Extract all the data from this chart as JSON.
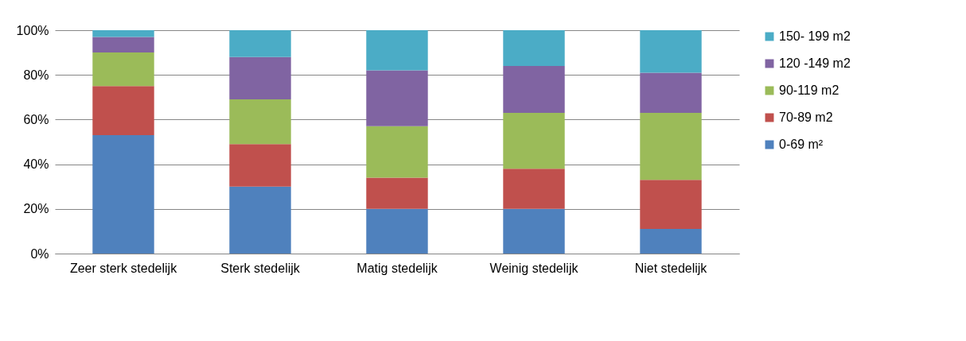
{
  "chart_data": {
    "type": "bar",
    "stacked": true,
    "categories": [
      "Zeer sterk stedelijk",
      "Sterk stedelijk",
      "Matig stedelijk",
      "Weinig stedelijk",
      "Niet stedelijk"
    ],
    "series": [
      {
        "name": "0-69 m²",
        "color": "#4f81bd",
        "values": [
          53,
          30,
          20,
          20,
          11
        ]
      },
      {
        "name": "70-89 m2",
        "color": "#c0504d",
        "values": [
          22,
          19,
          14,
          18,
          22
        ]
      },
      {
        "name": "90-119 m2",
        "color": "#9bbb59",
        "values": [
          15,
          20,
          23,
          25,
          30
        ]
      },
      {
        "name": "120 -149 m2",
        "color": "#8064a2",
        "values": [
          7,
          19,
          25,
          21,
          18
        ]
      },
      {
        "name": "150- 199 m2",
        "color": "#4bacc6",
        "values": [
          3,
          12,
          18,
          16,
          19
        ]
      }
    ],
    "ylim": [
      0,
      100
    ],
    "yticks": [
      {
        "value": 0,
        "label": "0%"
      },
      {
        "value": 20,
        "label": "20%"
      },
      {
        "value": 40,
        "label": "40%"
      },
      {
        "value": 60,
        "label": "60%"
      },
      {
        "value": 80,
        "label": "80%"
      },
      {
        "value": 100,
        "label": "100%"
      }
    ],
    "grid": "y",
    "legend": "right"
  }
}
